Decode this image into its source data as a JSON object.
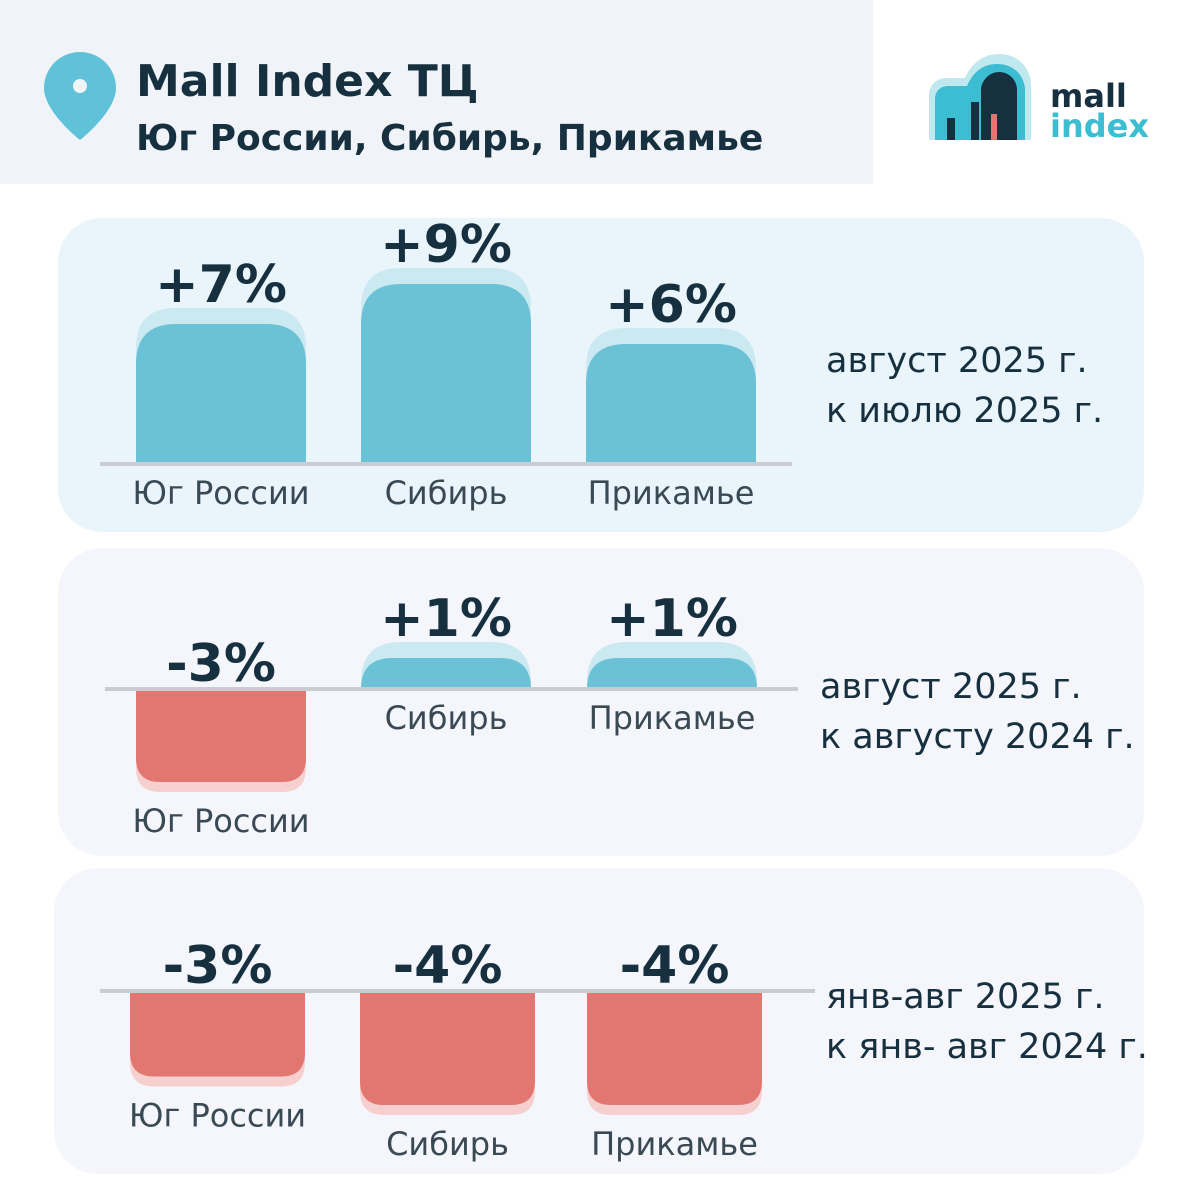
{
  "header": {
    "title": "Mall Index ТЦ",
    "subtitle": "Юг России, Сибирь, Прикамье"
  },
  "logo": {
    "line1": "mall",
    "line2": "index"
  },
  "colors": {
    "positive": "#6bc2d6",
    "positive_shadow": "#cbe9f1",
    "negative": "#e27670",
    "negative_shadow": "#f6d0ce",
    "axis": "#c9cdd2",
    "text": "#17303f",
    "logo_teal": "#3cbdd1",
    "logo_dark": "#17303f"
  },
  "chart_data": [
    {
      "type": "bar",
      "title": "август 2025 г. к июлю 2025 г.",
      "caption": [
        "август 2025 г.",
        "к июлю 2025 г."
      ],
      "categories": [
        "Юг России",
        "Сибирь",
        "Прикамье"
      ],
      "values": [
        7,
        9,
        6
      ],
      "value_labels": [
        "+7%",
        "+9%",
        "+6%"
      ],
      "unit": "%"
    },
    {
      "type": "bar",
      "title": "август 2025 г. к августу 2024 г.",
      "caption": [
        "август 2025 г.",
        "к августу 2024 г."
      ],
      "categories": [
        "Юг России",
        "Сибирь",
        "Прикамье"
      ],
      "values": [
        -3,
        1,
        1
      ],
      "value_labels": [
        "-3%",
        "+1%",
        "+1%"
      ],
      "unit": "%"
    },
    {
      "type": "bar",
      "title": "янв-авг 2025 г. к янв- авг 2024 г.",
      "caption": [
        "янв-авг 2025 г.",
        "к янв- авг 2024 г."
      ],
      "categories": [
        "Юг России",
        "Сибирь",
        "Прикамье"
      ],
      "values": [
        -3,
        -4,
        -4
      ],
      "value_labels": [
        "-3%",
        "-4%",
        "-4%"
      ],
      "unit": "%"
    }
  ]
}
